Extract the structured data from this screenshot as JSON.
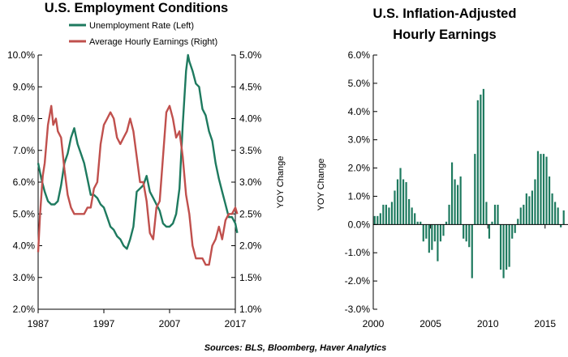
{
  "source_note": "Sources: BLS, Bloomberg, Haver Analytics",
  "colors": {
    "unemployment": "#1e7a5f",
    "earnings": "#c0504d",
    "bars": "#1e7a5f"
  },
  "chart_data": [
    {
      "type": "line",
      "title": "U.S. Employment Conditions",
      "xlabel": "",
      "ylabel_left": "",
      "ylabel_right": "YOY Change",
      "x_tick_labels": [
        "1987",
        "1997",
        "2007",
        "2017"
      ],
      "xlim": [
        1987,
        2017
      ],
      "ylim_left": [
        2.0,
        10.0
      ],
      "ylim_right": [
        1.0,
        5.0
      ],
      "y_left_ticks": [
        "2.0%",
        "3.0%",
        "4.0%",
        "5.0%",
        "6.0%",
        "7.0%",
        "8.0%",
        "9.0%",
        "10.0%"
      ],
      "y_right_ticks": [
        "1.0%",
        "1.5%",
        "2.0%",
        "2.5%",
        "3.0%",
        "3.5%",
        "4.0%",
        "4.5%",
        "5.0%"
      ],
      "legend_placement": "top-left",
      "grid": false,
      "series": [
        {
          "name": "Unemployment Rate (Left)",
          "axis": "left",
          "x": [
            1987.0,
            1987.5,
            1988.0,
            1988.5,
            1989.0,
            1989.5,
            1990.0,
            1990.5,
            1991.0,
            1991.5,
            1992.0,
            1992.5,
            1993.0,
            1993.5,
            1994.0,
            1994.5,
            1995.0,
            1995.5,
            1996.0,
            1996.5,
            1997.0,
            1997.5,
            1998.0,
            1998.5,
            1999.0,
            1999.5,
            2000.0,
            2000.5,
            2001.0,
            2001.5,
            2002.0,
            2002.5,
            2003.0,
            2003.5,
            2004.0,
            2004.5,
            2005.0,
            2005.5,
            2006.0,
            2006.5,
            2007.0,
            2007.5,
            2008.0,
            2008.5,
            2009.0,
            2009.5,
            2009.8,
            2010.0,
            2010.5,
            2011.0,
            2011.5,
            2012.0,
            2012.5,
            2013.0,
            2013.5,
            2014.0,
            2014.5,
            2015.0,
            2015.5,
            2016.0,
            2016.5,
            2017.0,
            2017.3
          ],
          "values": [
            6.6,
            6.1,
            5.7,
            5.4,
            5.3,
            5.3,
            5.4,
            5.9,
            6.6,
            6.9,
            7.4,
            7.7,
            7.2,
            6.9,
            6.6,
            6.1,
            5.6,
            5.6,
            5.5,
            5.3,
            5.2,
            4.9,
            4.6,
            4.5,
            4.3,
            4.2,
            4.0,
            3.9,
            4.2,
            4.6,
            5.7,
            5.8,
            5.9,
            6.2,
            5.7,
            5.5,
            5.3,
            5.1,
            4.7,
            4.6,
            4.6,
            4.7,
            5.0,
            5.8,
            7.8,
            9.5,
            10.0,
            9.8,
            9.5,
            9.1,
            9.0,
            8.3,
            8.1,
            7.6,
            7.3,
            6.6,
            6.1,
            5.7,
            5.3,
            4.9,
            4.9,
            4.7,
            4.4
          ]
        },
        {
          "name": "Average Hourly Earnings (Right)",
          "axis": "right",
          "x": [
            1987.0,
            1987.3,
            1987.7,
            1988.0,
            1988.5,
            1989.0,
            1989.3,
            1989.7,
            1990.0,
            1990.5,
            1991.0,
            1991.5,
            1992.0,
            1992.5,
            1993.0,
            1993.5,
            1994.0,
            1994.5,
            1995.0,
            1995.5,
            1996.0,
            1996.5,
            1997.0,
            1997.5,
            1998.0,
            1998.5,
            1999.0,
            1999.5,
            2000.0,
            2000.5,
            2001.0,
            2001.5,
            2002.0,
            2002.5,
            2003.0,
            2003.5,
            2004.0,
            2004.5,
            2005.0,
            2005.5,
            2006.0,
            2006.5,
            2007.0,
            2007.5,
            2008.0,
            2008.5,
            2009.0,
            2009.5,
            2010.0,
            2010.5,
            2011.0,
            2011.5,
            2012.0,
            2012.5,
            2013.0,
            2013.5,
            2014.0,
            2014.5,
            2015.0,
            2015.5,
            2016.0,
            2016.5,
            2017.0,
            2017.3
          ],
          "values": [
            1.9,
            2.5,
            3.1,
            3.3,
            3.9,
            4.2,
            3.9,
            4.0,
            3.8,
            3.7,
            3.2,
            2.8,
            2.6,
            2.5,
            2.5,
            2.5,
            2.5,
            2.6,
            2.6,
            2.9,
            3.0,
            3.6,
            3.9,
            4.0,
            4.1,
            4.0,
            3.7,
            3.6,
            3.7,
            3.8,
            4.0,
            3.8,
            3.4,
            3.0,
            3.0,
            2.7,
            2.2,
            2.1,
            2.6,
            2.7,
            3.4,
            4.1,
            4.2,
            4.0,
            3.7,
            3.8,
            3.4,
            2.8,
            2.5,
            2.0,
            1.8,
            1.8,
            1.8,
            1.7,
            1.7,
            2.0,
            2.1,
            2.3,
            2.1,
            2.4,
            2.5,
            2.5,
            2.6,
            2.5
          ]
        }
      ]
    },
    {
      "type": "bar",
      "title": "U.S. Inflation-Adjusted Hourly Earnings",
      "title_lines": [
        "U.S. Inflation-Adjusted",
        "Hourly Earnings"
      ],
      "xlabel": "",
      "ylabel": "YOY Change",
      "x_tick_labels": [
        "2000",
        "2005",
        "2010",
        "2015"
      ],
      "xlim": [
        2000,
        2017
      ],
      "ylim": [
        -3.0,
        6.0
      ],
      "y_ticks": [
        "-3.0%",
        "-2.0%",
        "-1.0%",
        "0.0%",
        "1.0%",
        "2.0%",
        "3.0%",
        "4.0%",
        "5.0%",
        "6.0%"
      ],
      "grid": false,
      "series": [
        {
          "name": "",
          "x_start": 2000.0,
          "x_step": 0.25,
          "values": [
            0.3,
            0.3,
            0.4,
            0.7,
            0.7,
            0.6,
            0.8,
            1.2,
            1.6,
            2.0,
            1.6,
            1.5,
            0.9,
            0.6,
            0.4,
            0.1,
            0.1,
            -0.6,
            -0.5,
            -1.0,
            -0.9,
            -0.6,
            -1.3,
            -0.6,
            -0.4,
            0.1,
            0.7,
            2.2,
            1.6,
            1.4,
            1.7,
            -0.5,
            -0.6,
            -0.8,
            -1.9,
            2.5,
            4.4,
            4.6,
            4.8,
            0.8,
            -0.5,
            0.1,
            0.7,
            0.7,
            -1.6,
            -1.9,
            -1.6,
            -1.5,
            -0.5,
            -0.3,
            0.2,
            0.6,
            0.7,
            1.1,
            1.0,
            1.2,
            1.6,
            2.6,
            2.5,
            2.5,
            2.4,
            1.7,
            1.1,
            0.8,
            0.6,
            -0.1,
            0.5
          ]
        }
      ]
    }
  ]
}
